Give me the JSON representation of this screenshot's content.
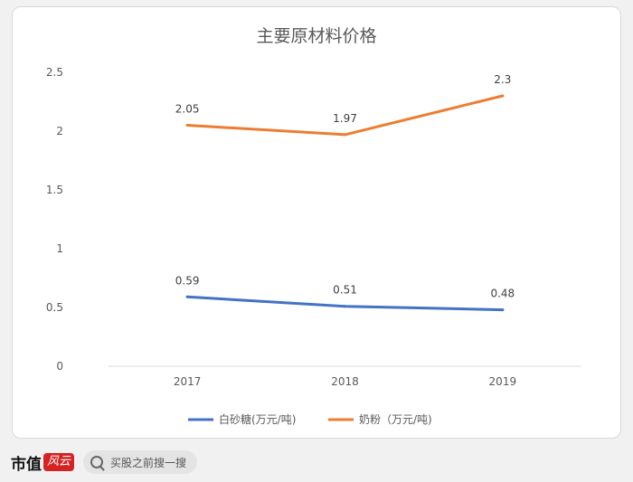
{
  "chart_data": {
    "type": "line",
    "title": "主要原材料价格",
    "categories": [
      "2017",
      "2018",
      "2019"
    ],
    "series": [
      {
        "name": "白砂糖(万元/吨)",
        "values": [
          0.59,
          0.51,
          0.48
        ],
        "labels": [
          "0.59",
          "0.51",
          "0.48"
        ],
        "color": "#4472c4"
      },
      {
        "name": "奶粉（万元/吨)",
        "values": [
          2.05,
          1.97,
          2.3
        ],
        "labels": [
          "2.05",
          "1.97",
          "2.3"
        ],
        "color": "#ed7d31"
      }
    ],
    "ylim": [
      0,
      2.5
    ],
    "yticks": [
      "0",
      "0.5",
      "1",
      "1.5",
      "2",
      "2.5"
    ],
    "grid": false,
    "legend": "bottom"
  },
  "footer": {
    "brand": "市值",
    "seal": "风云",
    "search_placeholder": "买股之前搜一搜"
  }
}
